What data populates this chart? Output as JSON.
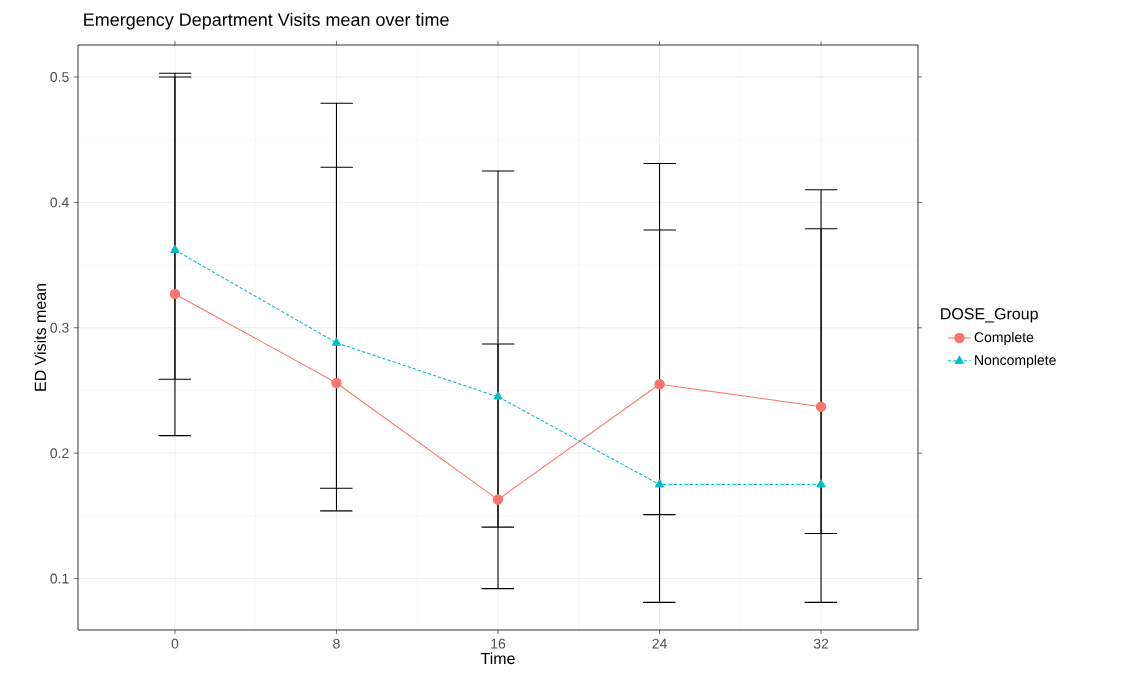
{
  "chart_data": {
    "type": "line",
    "title": "Emergency Department Visits mean over time",
    "xlabel": "Time",
    "ylabel": "ED Visits mean",
    "legend_title": "DOSE_Group",
    "x": [
      0,
      8,
      16,
      24,
      32
    ],
    "series": [
      {
        "name": "Complete",
        "color": "#f8766d",
        "marker": "circle",
        "line_style": "solid",
        "values": [
          0.327,
          0.256,
          0.163,
          0.255,
          0.237
        ],
        "errors": [
          [
            0.214,
            0.5
          ],
          [
            0.172,
            0.428
          ],
          [
            0.141,
            0.287
          ],
          [
            0.151,
            0.378
          ],
          [
            0.136,
            0.379
          ]
        ]
      },
      {
        "name": "Noncomplete",
        "color": "#00bfc4",
        "marker": "triangle",
        "line_style": "dashed",
        "values": [
          0.362,
          0.288,
          0.245,
          0.175,
          0.175
        ],
        "errors": [
          [
            0.259,
            0.503
          ],
          [
            0.154,
            0.479
          ],
          [
            0.092,
            0.425
          ],
          [
            0.081,
            0.431
          ],
          [
            0.081,
            0.41
          ]
        ]
      }
    ],
    "xlim": [
      -4.8,
      36.8
    ],
    "ylim": [
      0.059,
      0.5255
    ],
    "xticks": [
      0,
      8,
      16,
      24,
      32
    ],
    "yticks": [
      0.1,
      0.2,
      0.3,
      0.4,
      0.5
    ],
    "grid": true,
    "legend": "right"
  }
}
